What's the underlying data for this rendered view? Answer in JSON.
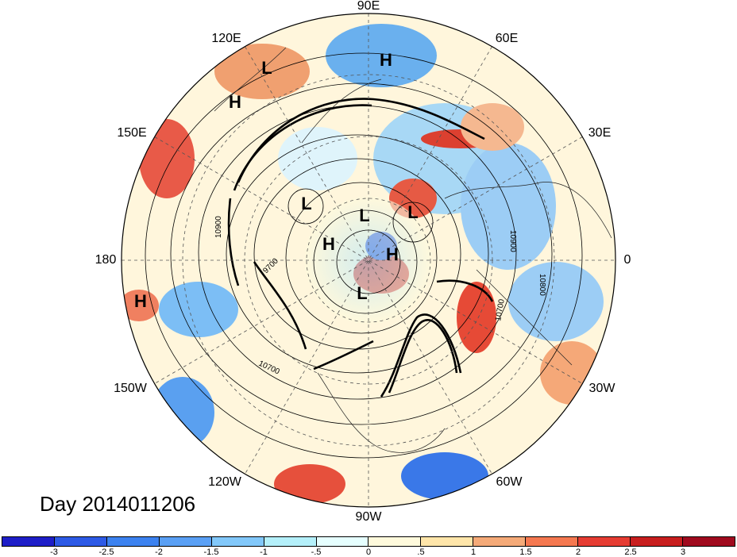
{
  "title": "Day 2014011206",
  "lon_labels": [
    "90E",
    "60E",
    "30E",
    "0",
    "30W",
    "60W",
    "90W",
    "120W",
    "150W",
    "180",
    "150E",
    "120E"
  ],
  "pressure_centers": [
    "L",
    "H",
    "H",
    "L",
    "L",
    "H",
    "L",
    "H",
    "L",
    "H"
  ],
  "contour_labels": [
    "10900",
    "9700",
    "10700",
    "10800",
    "10900",
    "10700"
  ],
  "colorbar": {
    "ticks": [
      "-3",
      "-2.5",
      "-2",
      "-1.5",
      "-1",
      "-.5",
      "0",
      ".5",
      "1",
      "1.5",
      "2",
      "2.5",
      "3"
    ],
    "colors": [
      "#1e1ec8",
      "#2d5ae6",
      "#3c82f0",
      "#5aa0f5",
      "#82c8fa",
      "#b4f0fa",
      "#e6ffff",
      "#fffadc",
      "#ffe6aa",
      "#f5aa78",
      "#f57850",
      "#e63c32",
      "#c81e1e",
      "#a00a1e"
    ]
  }
}
